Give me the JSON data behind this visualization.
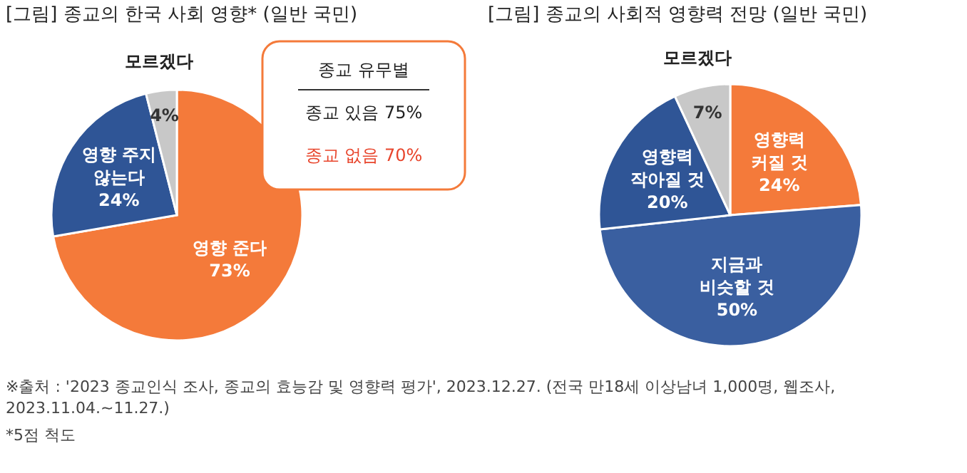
{
  "chart_data": [
    {
      "type": "pie",
      "title": "[그림] 종교의 한국 사회 영향* (일반 국민)",
      "categories": [
        "영향 준다",
        "영향 주지\n않는다",
        "모르겠다"
      ],
      "values": [
        73,
        24,
        4
      ],
      "value_labels": [
        "73%",
        "24%",
        "4%"
      ],
      "colors": [
        "#f47a3a",
        "#2f5596",
        "#c8c8c8"
      ],
      "annotations": [
        "종교 유무별",
        "종교 있음  75%",
        "종교 없음  70%",
        "※출처 : '2023 종교인식 조사, 종교의 효능감 및 영향력 평가', 2023.12.27. (전국 만18세 이상남녀 1,000명, 웹조사,\n2023.11.04.~11.27.)",
        "*5점 척도"
      ]
    },
    {
      "type": "pie",
      "title": "[그림] 종교의 사회적 영향력 전망 (일반 국민)",
      "categories": [
        "영향력\n커질 것",
        "지금과\n비슷할 것",
        "영향력\n작아질 것",
        "모르겠다"
      ],
      "values": [
        24,
        50,
        20,
        7
      ],
      "value_labels": [
        "24%",
        "50%",
        "20%",
        "7%"
      ],
      "colors": [
        "#f47a3a",
        "#3a5fa0",
        "#2f5596",
        "#c8c8c8"
      ]
    }
  ]
}
